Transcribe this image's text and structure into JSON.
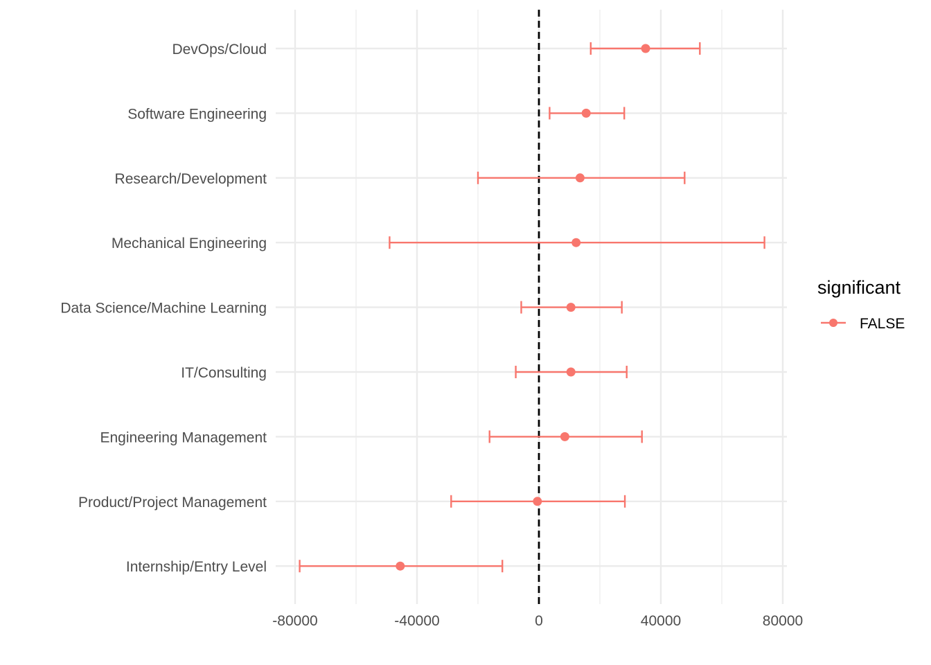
{
  "chart_data": {
    "type": "scatter",
    "subtype": "point-range (coefficient plot with error bars)",
    "title": "",
    "xlabel": "",
    "ylabel": "",
    "xlim": [
      -80000,
      80000
    ],
    "x_ticks": [
      -80000,
      -40000,
      0,
      40000,
      80000
    ],
    "x_tick_labels": [
      "-80000",
      "-40000",
      "0",
      "40000",
      "80000"
    ],
    "reference_line": {
      "x": 0,
      "style": "dashed",
      "color": "#000000"
    },
    "grid": true,
    "legend": {
      "title": "significant",
      "position": "right",
      "entries": [
        {
          "label": "FALSE",
          "color": "#F8766D"
        }
      ]
    },
    "categories": [
      "DevOps/Cloud",
      "Software Engineering",
      "Research/Development",
      "Mechanical Engineering",
      "Data Science/Machine Learning",
      "IT/Consulting",
      "Engineering Management",
      "Product/Project Management",
      "Internship/Entry Level"
    ],
    "series": [
      {
        "name": "FALSE",
        "color": "#F8766D",
        "points": [
          {
            "category": "DevOps/Cloud",
            "estimate": 35000,
            "low": 17000,
            "high": 52800
          },
          {
            "category": "Software Engineering",
            "estimate": 15500,
            "low": 3500,
            "high": 28000
          },
          {
            "category": "Research/Development",
            "estimate": 13500,
            "low": -20000,
            "high": 47800
          },
          {
            "category": "Mechanical Engineering",
            "estimate": 12200,
            "low": -49000,
            "high": 74000
          },
          {
            "category": "Data Science/Machine Learning",
            "estimate": 10500,
            "low": -5800,
            "high": 27200
          },
          {
            "category": "IT/Consulting",
            "estimate": 10500,
            "low": -7600,
            "high": 28800
          },
          {
            "category": "Engineering Management",
            "estimate": 8500,
            "low": -16200,
            "high": 33800
          },
          {
            "category": "Product/Project Management",
            "estimate": -500,
            "low": -28800,
            "high": 28200
          },
          {
            "category": "Internship/Entry Level",
            "estimate": -45500,
            "low": -78500,
            "high": -12000
          }
        ]
      }
    ]
  }
}
